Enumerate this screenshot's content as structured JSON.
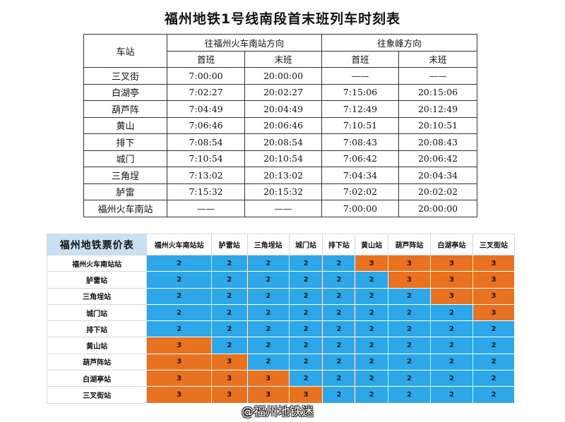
{
  "title": "福州地铁1号线南段首末班列车时刻表",
  "timetable": {
    "station_header": "车站",
    "dir1": "往福州火车南站方向",
    "dir2": "往象峰方向",
    "first": "首班",
    "last": "末班",
    "rows": [
      {
        "station": "三叉街",
        "d1_first": "7:00:00",
        "d1_last": "20:00:00",
        "d2_first": "——",
        "d2_last": "——"
      },
      {
        "station": "白湖亭",
        "d1_first": "7:02:27",
        "d1_last": "20:02:27",
        "d2_first": "7:15:06",
        "d2_last": "20:15:06"
      },
      {
        "station": "葫芦阵",
        "d1_first": "7:04:49",
        "d1_last": "20:04:49",
        "d2_first": "7:12:49",
        "d2_last": "20:12:49"
      },
      {
        "station": "黄山",
        "d1_first": "7:06:46",
        "d1_last": "20:06:46",
        "d2_first": "7:10:51",
        "d2_last": "20:10:51"
      },
      {
        "station": "排下",
        "d1_first": "7:08:54",
        "d1_last": "20:08:54",
        "d2_first": "7:08:43",
        "d2_last": "20:08:43"
      },
      {
        "station": "城门",
        "d1_first": "7:10:54",
        "d1_last": "20:10:54",
        "d2_first": "7:06:42",
        "d2_last": "20:06:42"
      },
      {
        "station": "三角埕",
        "d1_first": "7:13:02",
        "d1_last": "20:13:02",
        "d2_first": "7:04:34",
        "d2_last": "20:04:34"
      },
      {
        "station": "胪雷",
        "d1_first": "7:15:32",
        "d1_last": "20:15:32",
        "d2_first": "7:02:02",
        "d2_last": "20:02:02"
      },
      {
        "station": "福州火车南站",
        "d1_first": "——",
        "d1_last": "——",
        "d2_first": "7:00:00",
        "d2_last": "20:00:00"
      }
    ]
  },
  "fare": {
    "title": "福州地铁票价表",
    "columns": [
      "福州火车南站站",
      "胪雷站",
      "三角埕站",
      "城门站",
      "排下站",
      "黄山站",
      "葫芦阵站",
      "白湖亭站",
      "三叉街站"
    ],
    "rows": [
      {
        "name": "福州火车南站站",
        "values": [
          "2",
          "2",
          "2",
          "2",
          "2",
          "3",
          "3",
          "3",
          "3"
        ]
      },
      {
        "name": "胪雷站",
        "values": [
          "2",
          "2",
          "2",
          "2",
          "2",
          "2",
          "3",
          "3",
          "3"
        ]
      },
      {
        "name": "三角埕站",
        "values": [
          "2",
          "2",
          "2",
          "2",
          "2",
          "2",
          "2",
          "3",
          "3"
        ]
      },
      {
        "name": "城门站",
        "values": [
          "2",
          "2",
          "2",
          "2",
          "2",
          "2",
          "2",
          "2",
          "3"
        ]
      },
      {
        "name": "排下站",
        "values": [
          "2",
          "2",
          "2",
          "2",
          "2",
          "2",
          "2",
          "2",
          "2"
        ]
      },
      {
        "name": "黄山站",
        "values": [
          "3",
          "2",
          "2",
          "2",
          "2",
          "2",
          "2",
          "2",
          "2"
        ]
      },
      {
        "name": "葫芦阵站",
        "values": [
          "3",
          "3",
          "2",
          "2",
          "2",
          "2",
          "2",
          "2",
          "2"
        ]
      },
      {
        "name": "白湖亭站",
        "values": [
          "3",
          "3",
          "3",
          "2",
          "2",
          "2",
          "2",
          "2",
          "2"
        ]
      },
      {
        "name": "三叉街站",
        "values": [
          "3",
          "3",
          "3",
          "3",
          "2",
          "2",
          "2",
          "2",
          "2"
        ]
      }
    ],
    "colors": {
      "fare_2": "#2ea7e8",
      "fare_3": "#e8721f",
      "header_bg": "#c9dff2"
    }
  },
  "watermark": "@福州地铁迷"
}
